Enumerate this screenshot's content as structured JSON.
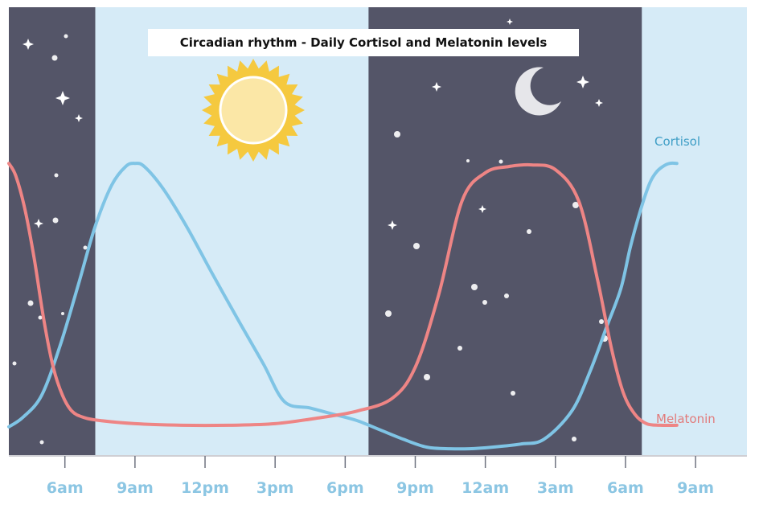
{
  "chart_data": {
    "type": "line",
    "title": "Circadian rhythm - Daily Cortisol and Melatonin levels",
    "xlabel": "",
    "ylabel": "",
    "x_unit": "hours from 6am (day 1)",
    "x_ticks": [
      {
        "label": "6am",
        "hour": 0
      },
      {
        "label": "9am",
        "hour": 3
      },
      {
        "label": "12pm",
        "hour": 6
      },
      {
        "label": "3pm",
        "hour": 9
      },
      {
        "label": "6pm",
        "hour": 12
      },
      {
        "label": "9pm",
        "hour": 15
      },
      {
        "label": "12am",
        "hour": 18
      },
      {
        "label": "3am",
        "hour": 21
      },
      {
        "label": "6am",
        "hour": 24
      },
      {
        "label": "9am",
        "hour": 27
      }
    ],
    "xlim": [
      -2.4,
      29.2
    ],
    "ylim": [
      0,
      100
    ],
    "night_bands": [
      [
        -2.4,
        1.3
      ],
      [
        13.0,
        24.7
      ]
    ],
    "series": [
      {
        "name": "Cortisol",
        "color": "#7fc4e5",
        "x": [
          -2.4,
          -1.8,
          -1.0,
          -0.2,
          0.6,
          1.3,
          2.0,
          2.6,
          3.0,
          3.4,
          4.2,
          5.2,
          6.3,
          7.5,
          8.5,
          9.4,
          10.5,
          11.5,
          12.5,
          13.5,
          14.5,
          15.5,
          16.5,
          17.3,
          18.3,
          19.5,
          20.5,
          21.7,
          22.5,
          23.2,
          23.8,
          24.2,
          24.6,
          25.0,
          25.3,
          25.6,
          25.9,
          26.2
        ],
        "y": [
          8,
          11,
          18,
          34,
          54,
          72,
          85,
          91,
          92,
          91,
          84,
          72,
          57,
          41,
          28,
          16,
          14,
          12,
          10,
          7,
          4,
          1.5,
          1,
          1,
          1.5,
          2.5,
          4,
          13,
          26,
          40,
          52,
          65,
          76,
          85,
          89,
          91,
          92,
          92
        ]
      },
      {
        "name": "Melatonin",
        "color": "#ee8585",
        "x": [
          -2.4,
          -2.1,
          -1.7,
          -1.3,
          -0.9,
          -0.5,
          -0.1,
          0.3,
          0.8,
          1.5,
          3.0,
          5.0,
          7.0,
          9.0,
          11.0,
          12.5,
          14.0,
          15.0,
          16.0,
          17.0,
          18.0,
          19.0,
          20.0,
          21.0,
          22.0,
          22.8,
          23.4,
          23.9,
          24.4,
          24.9,
          25.5,
          26.2
        ],
        "y": [
          92,
          88,
          77,
          61,
          42,
          27,
          18,
          13,
          11,
          10,
          9,
          8.5,
          8.5,
          9,
          11,
          13,
          17,
          27,
          50,
          80,
          89,
          91,
          91.5,
          90,
          80,
          55,
          33,
          19,
          12,
          9,
          8.5,
          8.5
        ]
      }
    ],
    "series_label_positions": "right end of each curve",
    "legend": "none",
    "grid": false
  },
  "colors": {
    "day_band": "#d6ebf7",
    "night_band": "#545568",
    "page_bg": "#ffffff",
    "axis": "#cfcfd4",
    "tick_label": "#8cc6e3",
    "cortisol": "#3f9ec6",
    "melatonin": "#e27b7b",
    "sun_rays": "#f5c93f",
    "sun_core": "#fbe7a6",
    "moon": "#e6e6ea",
    "stars": "#ffffff"
  },
  "icons": [
    "sun-icon",
    "moon-icon",
    "star-icon"
  ]
}
